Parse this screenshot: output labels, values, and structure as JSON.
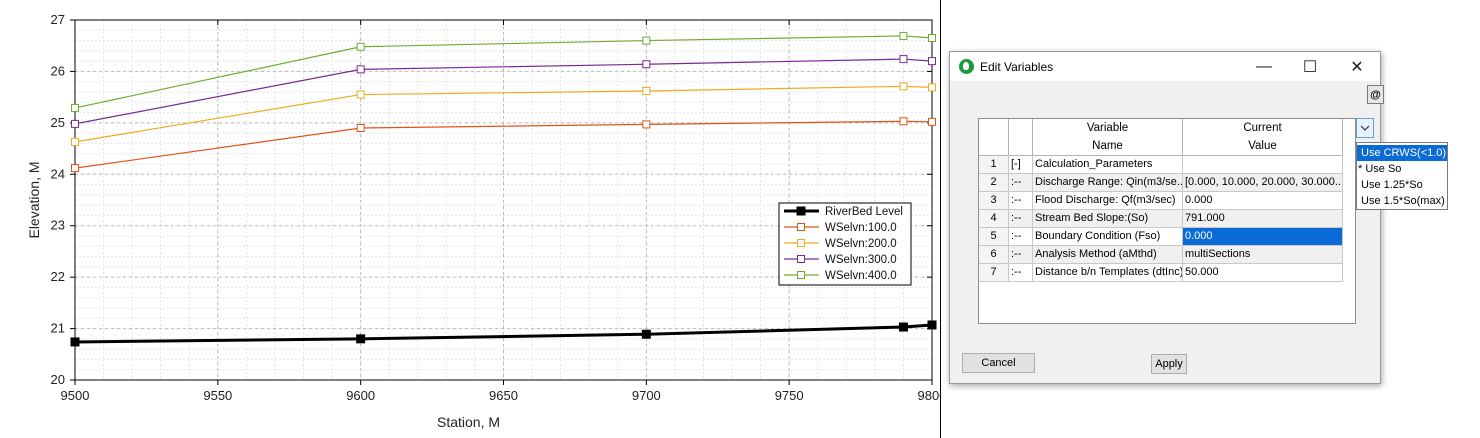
{
  "dialog": {
    "title": "Edit Variables",
    "min_glyph": "—",
    "max_glyph": "☐",
    "close_glyph": "✕",
    "at_label": "@",
    "grid": {
      "headers": {
        "name_line1": "Variable",
        "name_line2": "Name",
        "value_line1": "Current",
        "value_line2": "Value"
      },
      "rows": [
        {
          "num": "1",
          "tree": "[-]",
          "name": "Calculation_Parameters",
          "value": ""
        },
        {
          "num": "2",
          "tree": ":--",
          "name": "Discharge Range: Qin(m3/se...",
          "value": "[0.000, 10.000, 20.000, 30.000..."
        },
        {
          "num": "3",
          "tree": ":--",
          "name": "Flood Discharge: Qf(m3/sec)",
          "value": "0.000"
        },
        {
          "num": "4",
          "tree": ":--",
          "name": "Stream Bed Slope:(So)",
          "value": "791.000"
        },
        {
          "num": "5",
          "tree": ":--",
          "name": "Boundary Condition (Fso)",
          "value": "0.000"
        },
        {
          "num": "6",
          "tree": ":--",
          "name": "Analysis Method (aMthd)",
          "value": "multiSections"
        },
        {
          "num": "7",
          "tree": ":--",
          "name": "Distance b/n Templates (dtInc)",
          "value": "50.000"
        }
      ]
    },
    "dropdown": {
      "options": [
        "Use CRWS(<1.0)",
        "* Use So",
        "Use 1.25*So",
        "Use 1.5*So(max)"
      ],
      "highlighted": "Use CRWS(<1.0)"
    },
    "cancel_label": "Cancel",
    "apply_label": "Apply",
    "colors": {
      "selection": "#0a6ad6",
      "icon_green": "#1a9a3c"
    }
  },
  "chart_data": {
    "type": "line",
    "xlabel": "Station, M",
    "ylabel": "Elevation, M",
    "xlim": [
      9500,
      9800
    ],
    "ylim": [
      20,
      27
    ],
    "xticks": [
      "9500",
      "9550",
      "9600",
      "9650",
      "9700",
      "9750",
      "9800"
    ],
    "yticks": [
      "20",
      "21",
      "22",
      "23",
      "24",
      "25",
      "26",
      "27"
    ],
    "grid": true,
    "legend_position": "right",
    "x": [
      9500,
      9600,
      9700,
      9790,
      9800
    ],
    "series": [
      {
        "name": "RiverBed Level",
        "color": "#000000",
        "marker": "filled-square",
        "values": [
          20.74,
          20.8,
          20.89,
          21.03,
          21.07
        ]
      },
      {
        "name": "WSelvn:100.0",
        "color": "#e0521a",
        "marker": "square",
        "values": [
          24.12,
          24.9,
          24.97,
          25.03,
          25.02
        ]
      },
      {
        "name": "WSelvn:200.0",
        "color": "#eeaa22",
        "marker": "square",
        "values": [
          24.63,
          25.55,
          25.62,
          25.71,
          25.69
        ]
      },
      {
        "name": "WSelvn:300.0",
        "color": "#7a2a96",
        "marker": "square",
        "values": [
          24.98,
          26.04,
          26.14,
          26.24,
          26.2
        ]
      },
      {
        "name": "WSelvn:400.0",
        "color": "#70ac35",
        "marker": "square",
        "values": [
          25.29,
          26.48,
          26.6,
          26.69,
          26.65
        ]
      }
    ]
  }
}
